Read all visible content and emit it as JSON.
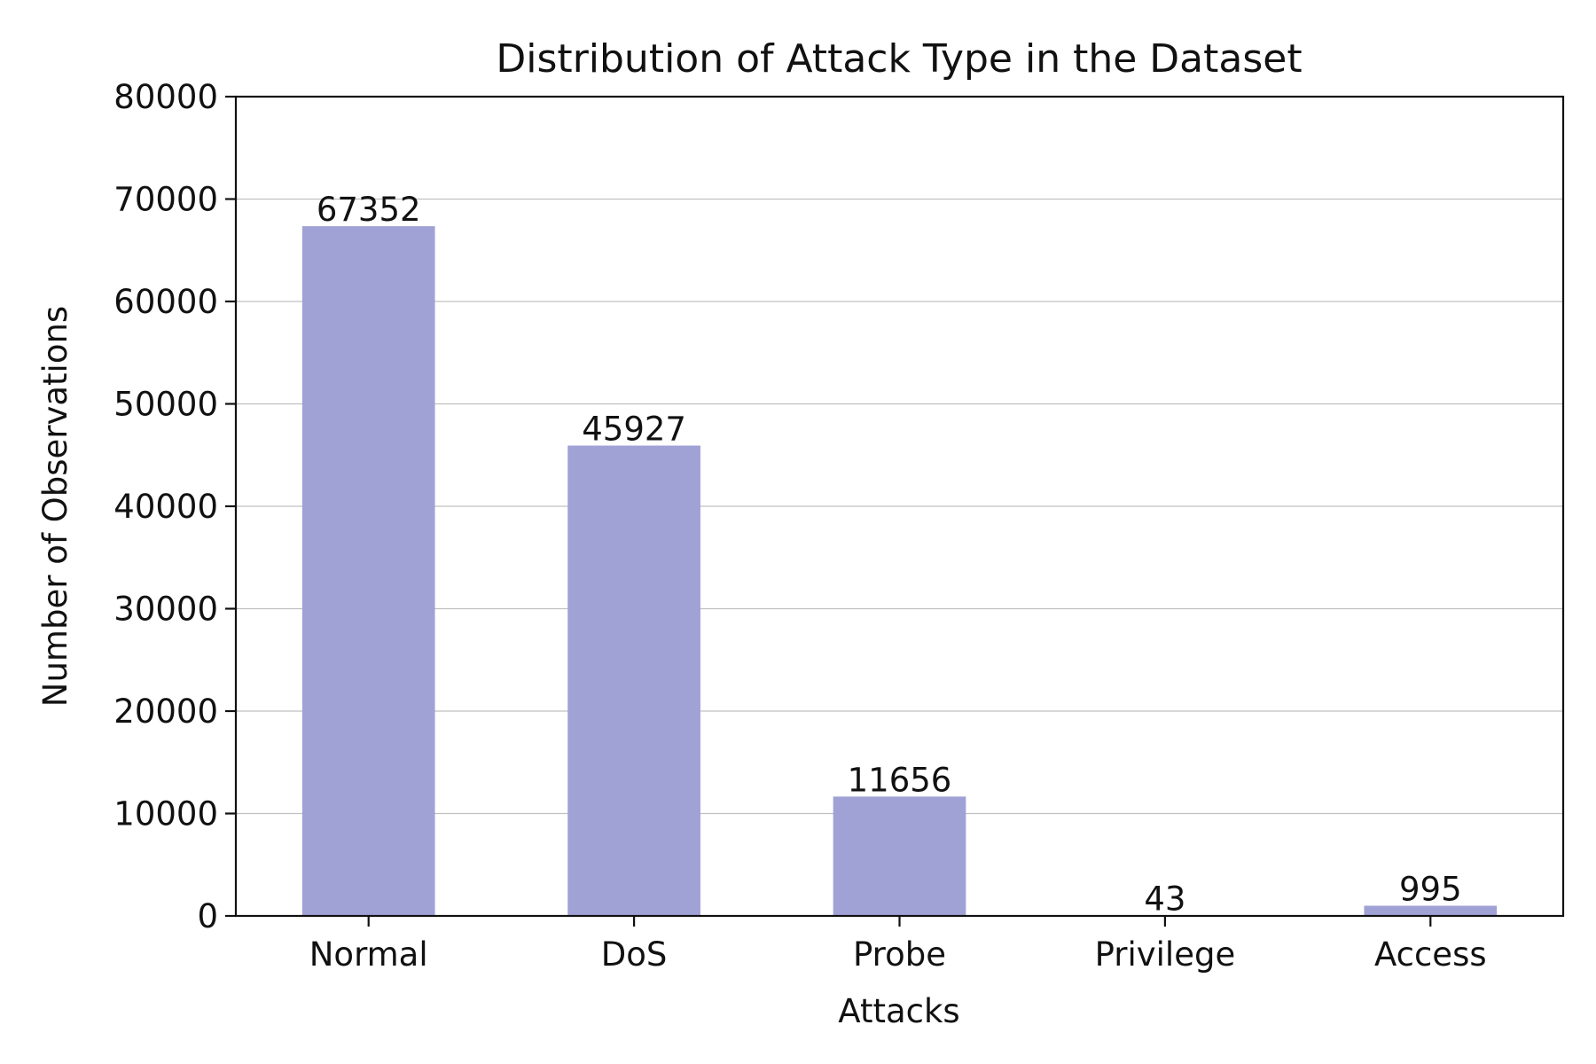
{
  "chart_data": {
    "type": "bar",
    "title": "Distribution of Attack Type in the Dataset",
    "xlabel": "Attacks",
    "ylabel": "Number of Observations",
    "categories": [
      "Normal",
      "DoS",
      "Probe",
      "Privilege",
      "Access"
    ],
    "values": [
      67352,
      45927,
      11656,
      43,
      995
    ],
    "data_labels": [
      "67352",
      "45927",
      "11656",
      "43",
      "995"
    ],
    "ylim": [
      0,
      80000
    ],
    "yticks": [
      0,
      10000,
      20000,
      30000,
      40000,
      50000,
      60000,
      70000,
      80000
    ],
    "ytick_labels": [
      "0",
      "10000",
      "20000",
      "30000",
      "40000",
      "50000",
      "60000",
      "70000",
      "80000"
    ],
    "grid": "y-axis horizontal lines",
    "legend": "none",
    "bar_color": "#a0a2d6"
  }
}
